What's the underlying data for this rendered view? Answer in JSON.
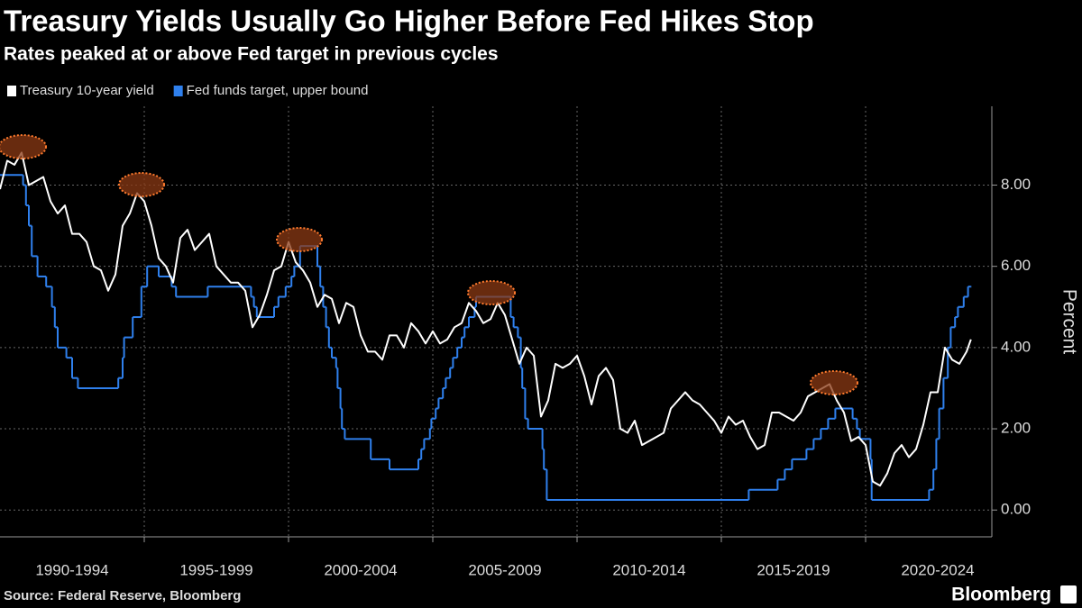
{
  "chart_data": {
    "type": "line",
    "title": "Treasury Yields Usually Go Higher Before Fed Hikes Stop",
    "subtitle": "Rates peaked at or above Fed target in previous cycles",
    "y_label": "Percent",
    "source": "Source: Federal Reserve, Bloomberg",
    "logo": "Bloomberg",
    "periods": [
      "1990-1994",
      "1995-1999",
      "2000-2004",
      "2005-2009",
      "2010-2014",
      "2015-2019",
      "2020-2024"
    ],
    "xlim": [
      1990,
      2024.375
    ],
    "xticks": [
      1995,
      2000,
      2005,
      2010,
      2015,
      2020
    ],
    "ylim": [
      -0.66,
      9.94
    ],
    "yticks": [
      {
        "value": 0,
        "label": "0.00"
      },
      {
        "value": 2,
        "label": "2.00"
      },
      {
        "value": 4,
        "label": "4.00"
      },
      {
        "value": 6,
        "label": "6.00"
      },
      {
        "value": 8,
        "label": "8.00"
      }
    ],
    "grid": true,
    "series": [
      {
        "name": "Treasury 10-year yield",
        "color": "#ffffff",
        "style": "line",
        "x": [
          1990,
          1990.25,
          1990.5,
          1990.75,
          1991,
          1991.25,
          1991.5,
          1991.75,
          1992,
          1992.25,
          1992.5,
          1992.75,
          1993,
          1993.25,
          1993.5,
          1993.75,
          1994,
          1994.25,
          1994.5,
          1994.75,
          1995,
          1995.25,
          1995.5,
          1995.75,
          1996,
          1996.25,
          1996.5,
          1996.75,
          1997,
          1997.25,
          1997.5,
          1997.75,
          1998,
          1998.25,
          1998.5,
          1998.75,
          1999,
          1999.25,
          1999.5,
          1999.75,
          2000,
          2000.25,
          2000.5,
          2000.75,
          2001,
          2001.25,
          2001.5,
          2001.75,
          2002,
          2002.25,
          2002.5,
          2002.75,
          2003,
          2003.25,
          2003.5,
          2003.75,
          2004,
          2004.25,
          2004.5,
          2004.75,
          2005,
          2005.25,
          2005.5,
          2005.75,
          2006,
          2006.25,
          2006.5,
          2006.75,
          2007,
          2007.25,
          2007.5,
          2007.75,
          2008,
          2008.25,
          2008.5,
          2008.75,
          2009,
          2009.25,
          2009.5,
          2009.75,
          2010,
          2010.25,
          2010.5,
          2010.75,
          2011,
          2011.25,
          2011.5,
          2011.75,
          2012,
          2012.25,
          2012.5,
          2012.75,
          2013,
          2013.25,
          2013.5,
          2013.75,
          2014,
          2014.25,
          2014.5,
          2014.75,
          2015,
          2015.25,
          2015.5,
          2015.75,
          2016,
          2016.25,
          2016.5,
          2016.75,
          2017,
          2017.25,
          2017.5,
          2017.75,
          2018,
          2018.25,
          2018.5,
          2018.75,
          2019,
          2019.25,
          2019.5,
          2019.75,
          2020,
          2020.25,
          2020.5,
          2020.75,
          2021,
          2021.25,
          2021.5,
          2021.75,
          2022,
          2022.25,
          2022.5,
          2022.75,
          2023,
          2023.25,
          2023.5,
          2023.65
        ],
        "values": [
          7.9,
          8.6,
          8.5,
          8.8,
          8.0,
          8.1,
          8.2,
          7.6,
          7.3,
          7.5,
          6.8,
          6.8,
          6.6,
          6.0,
          5.9,
          5.4,
          5.8,
          7.0,
          7.3,
          7.8,
          7.6,
          7.0,
          6.2,
          6.0,
          5.6,
          6.7,
          6.9,
          6.4,
          6.6,
          6.8,
          6.0,
          5.8,
          5.6,
          5.6,
          5.4,
          4.5,
          4.8,
          5.3,
          5.9,
          6.0,
          6.6,
          6.1,
          5.9,
          5.6,
          5.0,
          5.3,
          5.2,
          4.6,
          5.1,
          5.0,
          4.3,
          3.9,
          3.9,
          3.7,
          4.3,
          4.3,
          4.0,
          4.6,
          4.4,
          4.1,
          4.4,
          4.1,
          4.2,
          4.5,
          4.6,
          5.1,
          4.9,
          4.6,
          4.7,
          5.1,
          4.8,
          4.2,
          3.6,
          4.0,
          3.8,
          2.3,
          2.7,
          3.6,
          3.5,
          3.6,
          3.8,
          3.3,
          2.6,
          3.3,
          3.5,
          3.2,
          2.0,
          1.9,
          2.2,
          1.6,
          1.7,
          1.8,
          1.9,
          2.5,
          2.7,
          2.9,
          2.7,
          2.6,
          2.4,
          2.2,
          1.9,
          2.3,
          2.1,
          2.2,
          1.8,
          1.5,
          1.6,
          2.4,
          2.4,
          2.3,
          2.2,
          2.4,
          2.8,
          2.9,
          3.0,
          3.1,
          2.7,
          2.4,
          1.7,
          1.8,
          1.6,
          0.7,
          0.6,
          0.9,
          1.4,
          1.6,
          1.3,
          1.5,
          2.1,
          2.9,
          2.9,
          4.0,
          3.7,
          3.6,
          3.9,
          4.2
        ]
      },
      {
        "name": "Fed funds target, upper bound",
        "color": "#2f80ed",
        "style": "step",
        "x": [
          1990,
          1990.8,
          1990.9,
          1991,
          1991.1,
          1991.3,
          1991.6,
          1991.8,
          1991.9,
          1992,
          1992.3,
          1992.5,
          1992.7,
          1994.1,
          1994.25,
          1994.3,
          1994.6,
          1994.9,
          1995.1,
          1995.5,
          1995.95,
          1996.1,
          1997.2,
          1998.7,
          1998.8,
          1998.9,
          1999.5,
          1999.65,
          1999.9,
          2000.1,
          2000.2,
          2000.4,
          2001,
          2001.1,
          2001.2,
          2001.3,
          2001.4,
          2001.5,
          2001.65,
          2001.7,
          2001.8,
          2001.85,
          2001.95,
          2002.85,
          2003.5,
          2004.5,
          2004.6,
          2004.7,
          2004.9,
          2004.95,
          2005.1,
          2005.2,
          2005.35,
          2005.45,
          2005.6,
          2005.7,
          2005.85,
          2006,
          2006.1,
          2006.25,
          2006.45,
          2006.5,
          2007.7,
          2007.8,
          2007.95,
          2008.05,
          2008.1,
          2008.2,
          2008.3,
          2008.8,
          2008.85,
          2008.95,
          2015.95,
          2016.95,
          2017.2,
          2017.45,
          2017.95,
          2018.2,
          2018.45,
          2018.7,
          2018.95,
          2019.55,
          2019.7,
          2019.8,
          2020.17,
          2020.21,
          2022.2,
          2022.35,
          2022.45,
          2022.55,
          2022.7,
          2022.85,
          2022.95,
          2023.1,
          2023.2,
          2023.4,
          2023.55,
          2023.65
        ],
        "values": [
          8.25,
          8.0,
          7.5,
          7.0,
          6.25,
          5.75,
          5.5,
          5.0,
          4.5,
          4.0,
          3.75,
          3.25,
          3.0,
          3.25,
          3.75,
          4.25,
          4.75,
          5.5,
          6.0,
          5.75,
          5.5,
          5.25,
          5.5,
          5.25,
          5.0,
          4.75,
          5.0,
          5.25,
          5.5,
          5.75,
          6.0,
          6.5,
          6.0,
          5.5,
          5.0,
          4.5,
          4.0,
          3.75,
          3.5,
          3.0,
          2.5,
          2.0,
          1.75,
          1.25,
          1.0,
          1.25,
          1.5,
          1.75,
          2.0,
          2.25,
          2.5,
          2.75,
          3.0,
          3.25,
          3.5,
          3.75,
          4.0,
          4.25,
          4.5,
          4.75,
          5.0,
          5.25,
          4.75,
          4.5,
          4.25,
          3.5,
          3.0,
          2.25,
          2.0,
          1.5,
          1.0,
          0.25,
          0.5,
          0.75,
          1.0,
          1.25,
          1.5,
          1.75,
          2.0,
          2.25,
          2.5,
          2.25,
          2.0,
          1.75,
          1.25,
          0.25,
          0.5,
          1.0,
          1.75,
          2.5,
          3.25,
          4.0,
          4.5,
          4.75,
          5.0,
          5.25,
          5.5,
          5.5
        ]
      }
    ]
  }
}
